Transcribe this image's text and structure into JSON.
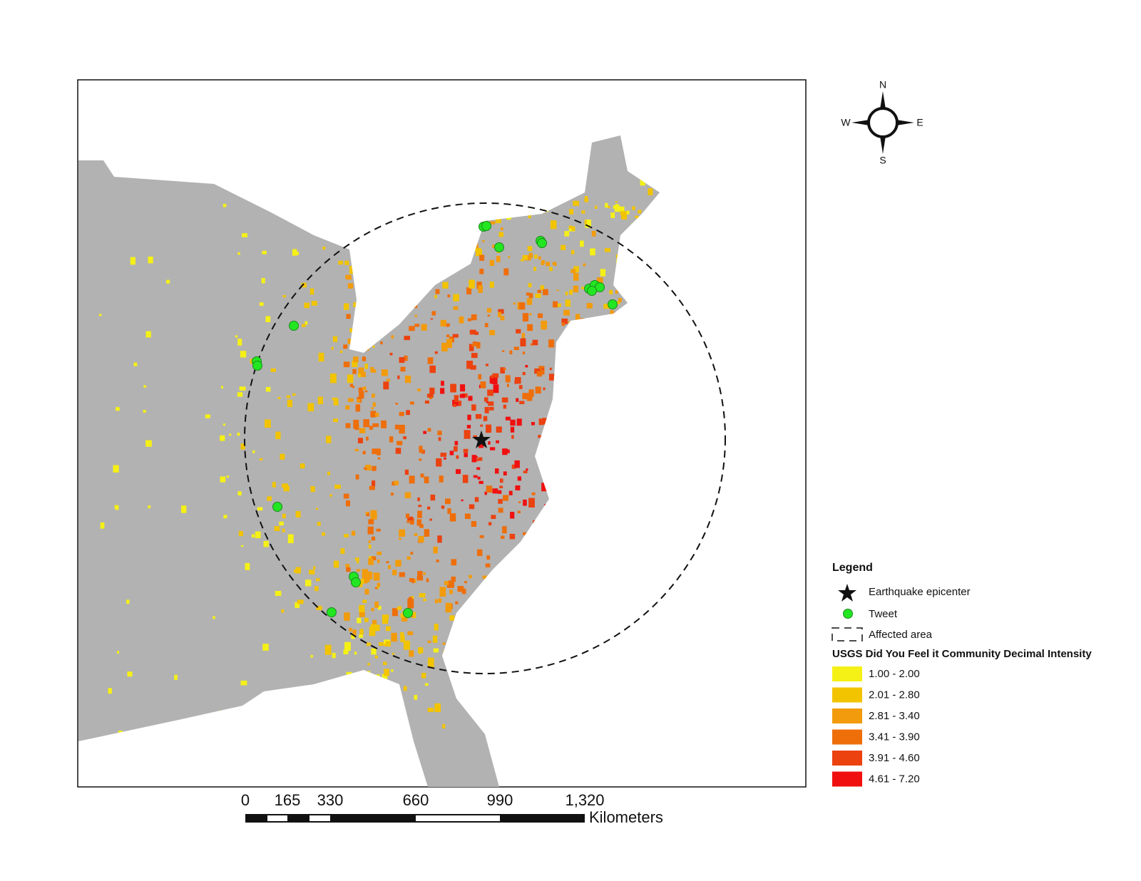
{
  "compass": {
    "north": "N",
    "south": "S",
    "east": "E",
    "west": "W"
  },
  "scale_bar": {
    "labels": [
      "0",
      "165",
      "330",
      "660",
      "990",
      "1,320"
    ],
    "unit": "Kilometers"
  },
  "legend": {
    "title": "Legend",
    "items": [
      {
        "label": "Earthquake epicenter"
      },
      {
        "label": "Tweet"
      },
      {
        "label": "Affected area"
      }
    ],
    "intensity_title": "USGS Did You Feel it Community Decimal Intensity",
    "classes": [
      {
        "label": "1.00 - 2.00",
        "color": "#f5f016"
      },
      {
        "label": "2.01 - 2.80",
        "color": "#f2c400"
      },
      {
        "label": "2.81 - 3.40",
        "color": "#f29b0c"
      },
      {
        "label": "3.41 - 3.90",
        "color": "#ee6e0a"
      },
      {
        "label": "3.91 - 4.60",
        "color": "#eb4210"
      },
      {
        "label": "4.61 - 7.20",
        "color": "#f01010"
      }
    ]
  }
}
